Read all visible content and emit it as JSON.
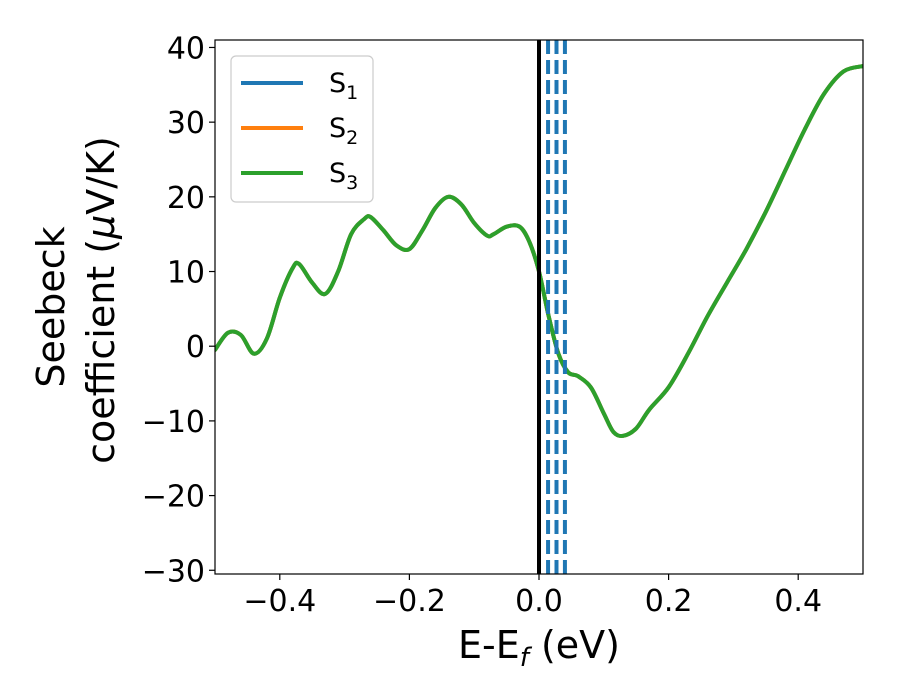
{
  "chart_data": {
    "type": "line",
    "xlabel": {
      "base": "E-E",
      "sub": "f",
      "unit": " (eV)"
    },
    "ylabel": {
      "line1": "Seebeck",
      "line2_prefix": "coefficient  (",
      "mu": "μ",
      "line2_suffix": "V/K)"
    },
    "xlim": [
      -0.5,
      0.5
    ],
    "ylim": [
      -30.5,
      41
    ],
    "xticks": [
      -0.4,
      -0.2,
      0.0,
      0.2,
      0.4
    ],
    "xtick_labels": [
      "−0.4",
      "−0.2",
      "0.0",
      "0.2",
      "0.4"
    ],
    "yticks": [
      -30,
      -20,
      -10,
      0,
      10,
      20,
      30,
      40
    ],
    "ytick_labels": [
      "−30",
      "−20",
      "−10",
      "0",
      "10",
      "20",
      "30",
      "40"
    ],
    "legend_position": "top-left",
    "legend": [
      {
        "base": "S",
        "sub": "1",
        "color": "#1f77b4"
      },
      {
        "base": "S",
        "sub": "2",
        "color": "#ff7f0e"
      },
      {
        "base": "S",
        "sub": "3",
        "color": "#2ca02c"
      }
    ],
    "series": [
      {
        "color": "#1f77b4",
        "x": [
          -0.5,
          -0.48,
          -0.46,
          -0.44,
          -0.42,
          -0.4,
          -0.38,
          -0.37,
          -0.35,
          -0.33,
          -0.31,
          -0.29,
          -0.27,
          -0.26,
          -0.24,
          -0.22,
          -0.2,
          -0.18,
          -0.16,
          -0.14,
          -0.12,
          -0.1,
          -0.08,
          -0.07,
          -0.05,
          -0.03,
          -0.015,
          0.0,
          0.015,
          0.03,
          0.045,
          0.06,
          0.08,
          0.1,
          0.115,
          0.13,
          0.15,
          0.17,
          0.2,
          0.23,
          0.26,
          0.29,
          0.32,
          0.35,
          0.38,
          0.41,
          0.44,
          0.47,
          0.5
        ],
        "y": [
          -0.5,
          1.8,
          1.5,
          -1.0,
          1.0,
          6.5,
          10.5,
          11.0,
          8.5,
          7.0,
          10.0,
          15.0,
          17.0,
          17.3,
          15.5,
          13.5,
          13.0,
          15.5,
          18.5,
          20.0,
          19.0,
          16.5,
          14.8,
          15.0,
          16.0,
          16.0,
          14.0,
          10.0,
          4.0,
          -1.0,
          -3.5,
          -4.0,
          -5.5,
          -9.0,
          -11.5,
          -12.0,
          -11.0,
          -8.5,
          -5.5,
          -1.0,
          4.0,
          8.5,
          13.0,
          18.0,
          23.5,
          29.0,
          33.8,
          36.8,
          37.5
        ]
      },
      {
        "color": "#ff7f0e",
        "x": [
          -0.5,
          -0.48,
          -0.46,
          -0.44,
          -0.42,
          -0.4,
          -0.38,
          -0.37,
          -0.35,
          -0.33,
          -0.31,
          -0.29,
          -0.27,
          -0.26,
          -0.24,
          -0.22,
          -0.2,
          -0.18,
          -0.16,
          -0.14,
          -0.12,
          -0.1,
          -0.08,
          -0.07,
          -0.05,
          -0.03,
          -0.015,
          0.0,
          0.015,
          0.03,
          0.045,
          0.06,
          0.08,
          0.1,
          0.115,
          0.13,
          0.15,
          0.17,
          0.2,
          0.23,
          0.26,
          0.29,
          0.32,
          0.35,
          0.38,
          0.41,
          0.44,
          0.47,
          0.5
        ],
        "y": [
          -0.5,
          1.8,
          1.5,
          -1.0,
          1.0,
          6.5,
          10.5,
          11.0,
          8.5,
          7.0,
          10.0,
          15.0,
          17.0,
          17.3,
          15.5,
          13.5,
          13.0,
          15.5,
          18.5,
          20.0,
          19.0,
          16.5,
          14.8,
          15.0,
          16.0,
          16.0,
          14.0,
          10.0,
          4.0,
          -1.0,
          -3.5,
          -4.0,
          -5.5,
          -9.0,
          -11.5,
          -12.0,
          -11.0,
          -8.5,
          -5.5,
          -1.0,
          4.0,
          8.5,
          13.0,
          18.0,
          23.5,
          29.0,
          33.8,
          36.8,
          37.5
        ]
      },
      {
        "color": "#2ca02c",
        "x": [
          -0.5,
          -0.48,
          -0.46,
          -0.44,
          -0.42,
          -0.4,
          -0.38,
          -0.37,
          -0.35,
          -0.33,
          -0.31,
          -0.29,
          -0.27,
          -0.26,
          -0.24,
          -0.22,
          -0.2,
          -0.18,
          -0.16,
          -0.14,
          -0.12,
          -0.1,
          -0.08,
          -0.07,
          -0.05,
          -0.03,
          -0.015,
          0.0,
          0.015,
          0.03,
          0.045,
          0.06,
          0.08,
          0.1,
          0.115,
          0.13,
          0.15,
          0.17,
          0.2,
          0.23,
          0.26,
          0.29,
          0.32,
          0.35,
          0.38,
          0.41,
          0.44,
          0.47,
          0.5
        ],
        "y": [
          -0.5,
          1.8,
          1.5,
          -1.0,
          1.0,
          6.5,
          10.5,
          11.0,
          8.5,
          7.0,
          10.0,
          15.0,
          17.0,
          17.3,
          15.5,
          13.5,
          13.0,
          15.5,
          18.5,
          20.0,
          19.0,
          16.5,
          14.8,
          15.0,
          16.0,
          16.0,
          14.0,
          10.0,
          4.0,
          -1.0,
          -3.5,
          -4.0,
          -5.5,
          -9.0,
          -11.5,
          -12.0,
          -11.0,
          -8.5,
          -5.5,
          -1.0,
          4.0,
          8.5,
          13.0,
          18.0,
          23.5,
          29.0,
          33.8,
          36.8,
          37.5
        ]
      }
    ],
    "vlines": [
      {
        "x": 0.0,
        "color": "#000000",
        "style": "solid"
      },
      {
        "x": 0.014,
        "color": "#1f77b4",
        "style": "dashed"
      },
      {
        "x": 0.027,
        "color": "#1f77b4",
        "style": "dashed"
      },
      {
        "x": 0.04,
        "color": "#1f77b4",
        "style": "dashed"
      }
    ]
  }
}
